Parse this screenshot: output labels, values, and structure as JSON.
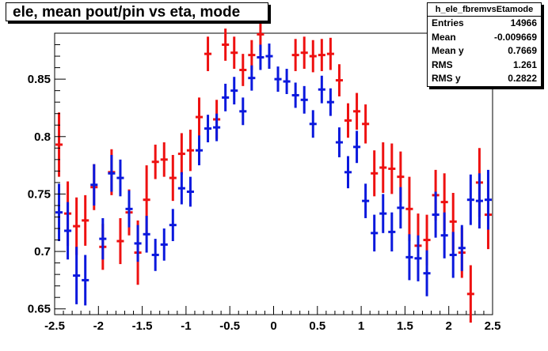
{
  "chart_data": {
    "type": "scatter",
    "title": "ele, mean pout/pin vs eta, mode",
    "xlabel": "",
    "ylabel": "",
    "xlim": [
      -2.5,
      2.5
    ],
    "ylim": [
      0.645,
      0.89
    ],
    "x_ticks": [
      "-2.5",
      "-2",
      "-1.5",
      "-1",
      "-0.5",
      "0",
      "0.5",
      "1",
      "1.5",
      "2",
      "2.5"
    ],
    "y_ticks": [
      "0.65",
      "0.7",
      "0.75",
      "0.8",
      "0.85"
    ],
    "grid": false,
    "colors": {
      "red": "#ee1111",
      "blue": "#0a18dd"
    },
    "stats": {
      "name": "h_ele_fbremvsEtamode",
      "rows": [
        {
          "label": "Entries",
          "value": "14966"
        },
        {
          "label": "Mean",
          "value": "-0.009669"
        },
        {
          "label": "Mean y",
          "value": "0.7669"
        },
        {
          "label": "RMS",
          "value": "1.261"
        },
        {
          "label": "RMS y",
          "value": "0.2822"
        }
      ]
    },
    "series": [
      {
        "color": "red",
        "points": [
          [
            -2.45,
            0.793,
            0.028
          ],
          [
            -2.35,
            0.733,
            0.028
          ],
          [
            -2.25,
            0.722,
            0.025
          ],
          [
            -2.15,
            0.727,
            0.022
          ],
          [
            -2.05,
            0.756,
            0.02
          ],
          [
            -1.95,
            0.704,
            0.02
          ],
          [
            -1.85,
            0.769,
            0.02
          ],
          [
            -1.75,
            0.709,
            0.02
          ],
          [
            -1.65,
            0.734,
            0.02
          ],
          [
            -1.55,
            0.699,
            0.028
          ],
          [
            -1.45,
            0.745,
            0.03
          ],
          [
            -1.35,
            0.778,
            0.015
          ],
          [
            -1.25,
            0.78,
            0.015
          ],
          [
            -1.15,
            0.764,
            0.02
          ],
          [
            -1.05,
            0.785,
            0.018
          ],
          [
            -0.95,
            0.788,
            0.018
          ],
          [
            -0.85,
            0.817,
            0.017
          ],
          [
            -0.75,
            0.872,
            0.015
          ],
          [
            -0.65,
            0.815,
            0.017
          ],
          [
            -0.55,
            0.88,
            0.014
          ],
          [
            -0.45,
            0.873,
            0.014
          ],
          [
            -0.35,
            0.858,
            0.014
          ],
          [
            -0.25,
            0.871,
            0.013
          ],
          [
            -0.15,
            0.889,
            0.014
          ],
          [
            0.25,
            0.871,
            0.014
          ],
          [
            0.35,
            0.873,
            0.014
          ],
          [
            0.45,
            0.87,
            0.014
          ],
          [
            0.55,
            0.871,
            0.014
          ],
          [
            0.65,
            0.872,
            0.014
          ],
          [
            0.75,
            0.849,
            0.014
          ],
          [
            0.85,
            0.814,
            0.015
          ],
          [
            0.95,
            0.822,
            0.016
          ],
          [
            1.05,
            0.811,
            0.017
          ],
          [
            1.15,
            0.768,
            0.02
          ],
          [
            1.25,
            0.773,
            0.022
          ],
          [
            1.35,
            0.772,
            0.022
          ],
          [
            1.45,
            0.765,
            0.022
          ],
          [
            1.55,
            0.737,
            0.028
          ],
          [
            1.65,
            0.705,
            0.028
          ],
          [
            1.75,
            0.71,
            0.022
          ],
          [
            1.85,
            0.749,
            0.022
          ],
          [
            1.95,
            0.743,
            0.025
          ],
          [
            2.05,
            0.726,
            0.025
          ],
          [
            2.15,
            0.699,
            0.022
          ],
          [
            2.25,
            0.663,
            0.025
          ],
          [
            2.35,
            0.76,
            0.03
          ],
          [
            2.45,
            0.732,
            0.03
          ]
        ]
      },
      {
        "color": "blue",
        "points": [
          [
            -2.45,
            0.734,
            0.025
          ],
          [
            -2.35,
            0.718,
            0.025
          ],
          [
            -2.25,
            0.679,
            0.025
          ],
          [
            -2.15,
            0.675,
            0.022
          ],
          [
            -2.05,
            0.758,
            0.018
          ],
          [
            -1.95,
            0.711,
            0.018
          ],
          [
            -1.85,
            0.768,
            0.016
          ],
          [
            -1.75,
            0.764,
            0.016
          ],
          [
            -1.65,
            0.737,
            0.016
          ],
          [
            -1.55,
            0.707,
            0.016
          ],
          [
            -1.45,
            0.715,
            0.016
          ],
          [
            -1.35,
            0.697,
            0.014
          ],
          [
            -1.25,
            0.706,
            0.014
          ],
          [
            -1.15,
            0.723,
            0.014
          ],
          [
            -1.05,
            0.755,
            0.014
          ],
          [
            -0.95,
            0.752,
            0.013
          ],
          [
            -0.85,
            0.788,
            0.013
          ],
          [
            -0.75,
            0.807,
            0.012
          ],
          [
            -0.65,
            0.808,
            0.012
          ],
          [
            -0.55,
            0.834,
            0.012
          ],
          [
            -0.45,
            0.84,
            0.012
          ],
          [
            -0.35,
            0.822,
            0.012
          ],
          [
            -0.25,
            0.851,
            0.011
          ],
          [
            -0.15,
            0.869,
            0.011
          ],
          [
            -0.05,
            0.87,
            0.011
          ],
          [
            0.05,
            0.85,
            0.011
          ],
          [
            0.15,
            0.848,
            0.011
          ],
          [
            0.25,
            0.836,
            0.011
          ],
          [
            0.35,
            0.832,
            0.012
          ],
          [
            0.45,
            0.811,
            0.012
          ],
          [
            0.55,
            0.841,
            0.012
          ],
          [
            0.65,
            0.83,
            0.012
          ],
          [
            0.75,
            0.795,
            0.013
          ],
          [
            0.85,
            0.769,
            0.014
          ],
          [
            0.95,
            0.791,
            0.014
          ],
          [
            1.05,
            0.744,
            0.015
          ],
          [
            1.15,
            0.716,
            0.016
          ],
          [
            1.25,
            0.733,
            0.017
          ],
          [
            1.35,
            0.717,
            0.017
          ],
          [
            1.45,
            0.738,
            0.018
          ],
          [
            1.55,
            0.695,
            0.02
          ],
          [
            1.65,
            0.694,
            0.02
          ],
          [
            1.75,
            0.681,
            0.02
          ],
          [
            1.85,
            0.732,
            0.02
          ],
          [
            1.95,
            0.714,
            0.02
          ],
          [
            2.05,
            0.697,
            0.02
          ],
          [
            2.15,
            0.703,
            0.02
          ],
          [
            2.25,
            0.745,
            0.022
          ],
          [
            2.35,
            0.744,
            0.024
          ],
          [
            2.45,
            0.745,
            0.026
          ]
        ]
      }
    ]
  }
}
